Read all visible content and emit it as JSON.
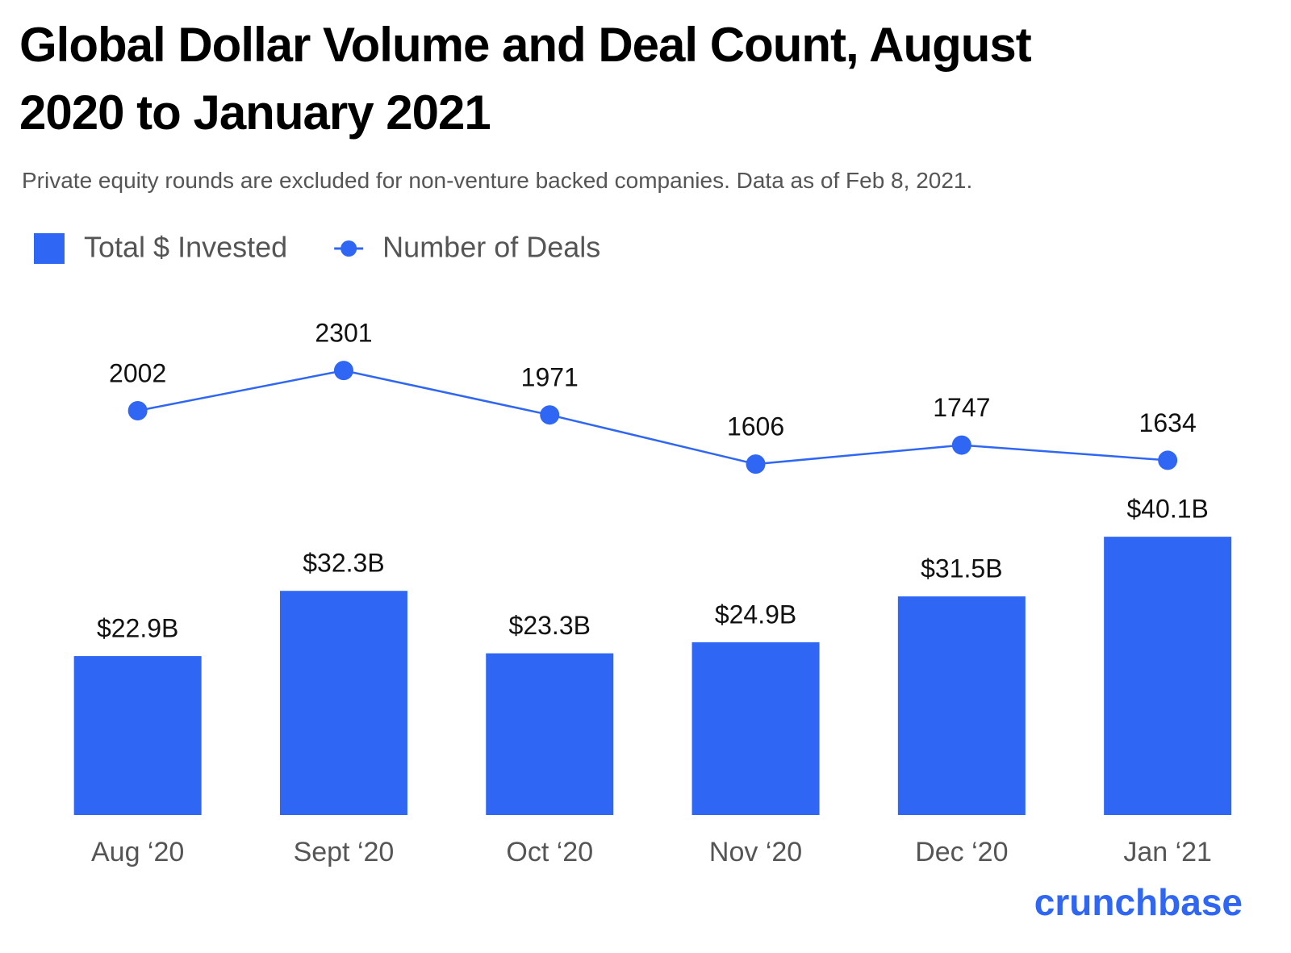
{
  "chart_data": {
    "type": "bar",
    "title": "Global Dollar Volume and Deal Count, August 2020 to January 2021",
    "subtitle": "Private equity rounds are excluded for non-venture backed companies. Data as of Feb 8, 2021.",
    "categories": [
      "Aug ‘20",
      "Sept ‘20",
      "Oct ‘20",
      "Nov ‘20",
      "Dec ‘20",
      "Jan ‘21"
    ],
    "series": [
      {
        "name": "Total $ Invested",
        "color": "#2f67f4",
        "values": [
          22.9,
          32.3,
          23.3,
          24.9,
          31.5,
          40.1
        ],
        "value_labels": [
          "$22.9B",
          "$32.3B",
          "$23.3B",
          "$24.9B",
          "$31.5B",
          "$40.1B"
        ]
      },
      {
        "name": "Number of Deals",
        "type": "line",
        "axis": "y2",
        "color": "#2f67f4",
        "values": [
          2002,
          2301,
          1971,
          1606,
          1747,
          1634
        ]
      }
    ],
    "ylim": [
      0,
      75
    ],
    "y2lim": [
      -1000,
      2865
    ],
    "grid": false,
    "legend": "top-left",
    "brand": "crunchbase"
  }
}
